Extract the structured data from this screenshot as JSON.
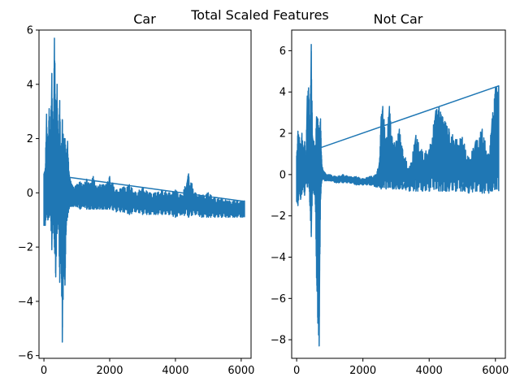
{
  "figure_title": "Total Scaled Features",
  "chart_data": [
    {
      "type": "line",
      "title": "Car",
      "xlabel": "",
      "ylabel": "",
      "xlim": [
        -150,
        6300
      ],
      "ylim": [
        -6.1,
        6.0
      ],
      "xticks": [
        0,
        2000,
        4000,
        6000
      ],
      "yticks": [
        -6,
        -4,
        -2,
        0,
        2,
        4,
        6
      ],
      "xtick_labels": [
        "0",
        "2000",
        "4000",
        "6000"
      ],
      "ytick_labels": [
        "−6",
        "−4",
        "−2",
        "0",
        "2",
        "4",
        "6"
      ],
      "grid": false,
      "color": "#1f77b4",
      "x": [
        0,
        40,
        80,
        120,
        160,
        200,
        240,
        280,
        320,
        360,
        400,
        440,
        480,
        520,
        560,
        600,
        640,
        680,
        720,
        760,
        800,
        850,
        900,
        1000,
        1100,
        1200,
        1300,
        1400,
        1500,
        1600,
        1700,
        1800,
        1900,
        2000,
        2200,
        2400,
        2600,
        2800,
        3000,
        3200,
        3400,
        3600,
        3800,
        4000,
        4200,
        4400,
        4600,
        4800,
        5000,
        5200,
        5400,
        5600,
        5800,
        6000,
        6100
      ],
      "y_max": [
        0.7,
        0.9,
        2.9,
        1.6,
        3.1,
        2.2,
        4.4,
        1.8,
        5.7,
        3.0,
        4.0,
        1.5,
        3.4,
        1.2,
        2.7,
        2.0,
        2.0,
        1.4,
        1.9,
        0.8,
        0.5,
        0.3,
        0.2,
        0.3,
        0.4,
        0.3,
        0.5,
        0.3,
        0.6,
        0.2,
        0.3,
        0.3,
        0.3,
        0.6,
        0.1,
        0.2,
        0.3,
        0.0,
        0.2,
        0.0,
        0.0,
        0.1,
        0.0,
        0.1,
        -0.1,
        0.7,
        0.0,
        -0.1,
        0.0,
        -0.2,
        -0.2,
        -0.3,
        -0.3,
        -0.3,
        -0.3
      ],
      "y_min": [
        -1.2,
        -1.2,
        -0.8,
        -1.0,
        -0.9,
        -0.8,
        -2.1,
        -1.0,
        -2.0,
        -3.1,
        -1.5,
        -0.9,
        -3.3,
        -2.2,
        -5.5,
        -2.8,
        -3.4,
        -1.2,
        -0.9,
        -0.6,
        -0.5,
        -0.5,
        -0.5,
        -0.5,
        -0.6,
        -0.5,
        -0.6,
        -0.6,
        -0.6,
        -0.6,
        -0.6,
        -0.6,
        -0.6,
        -0.6,
        -0.7,
        -0.7,
        -0.8,
        -0.7,
        -0.8,
        -0.8,
        -0.8,
        -0.8,
        -0.8,
        -0.9,
        -0.8,
        -0.9,
        -0.8,
        -0.9,
        -0.9,
        -0.9,
        -0.9,
        -0.9,
        -0.9,
        -0.9,
        -0.9
      ]
    },
    {
      "type": "line",
      "title": "Not Car",
      "xlabel": "",
      "ylabel": "",
      "xlim": [
        -150,
        6300
      ],
      "ylim": [
        -8.9,
        7.0
      ],
      "xticks": [
        0,
        2000,
        4000,
        6000
      ],
      "yticks": [
        -8,
        -6,
        -4,
        -2,
        0,
        2,
        4,
        6
      ],
      "xtick_labels": [
        "0",
        "2000",
        "4000",
        "6000"
      ],
      "ytick_labels": [
        "−8",
        "−6",
        "−4",
        "−2",
        "0",
        "2",
        "4",
        "6"
      ],
      "grid": false,
      "color": "#1f77b4",
      "x": [
        0,
        40,
        80,
        120,
        160,
        200,
        240,
        280,
        320,
        360,
        400,
        440,
        480,
        520,
        560,
        600,
        640,
        680,
        720,
        760,
        800,
        850,
        900,
        1000,
        1200,
        1400,
        1600,
        1800,
        2000,
        2200,
        2400,
        2500,
        2550,
        2600,
        2700,
        2800,
        2900,
        3000,
        3100,
        3200,
        3400,
        3600,
        3800,
        4000,
        4200,
        4300,
        4400,
        4500,
        4600,
        4800,
        5000,
        5200,
        5400,
        5600,
        5800,
        5900,
        6000,
        6100
      ],
      "y_max": [
        0.9,
        2.1,
        1.8,
        1.3,
        2.0,
        1.1,
        1.6,
        0.6,
        3.8,
        4.2,
        2.2,
        6.3,
        1.8,
        1.6,
        1.2,
        2.8,
        2.7,
        2.2,
        2.7,
        0.5,
        0.2,
        0.1,
        0.0,
        0.0,
        -0.1,
        0.0,
        -0.1,
        -0.1,
        -0.2,
        -0.1,
        0.0,
        0.6,
        2.8,
        3.3,
        1.7,
        3.3,
        1.5,
        1.6,
        2.2,
        1.2,
        0.3,
        1.9,
        1.1,
        1.2,
        3.1,
        3.3,
        2.8,
        2.5,
        2.2,
        1.7,
        1.8,
        0.8,
        1.6,
        2.2,
        0.9,
        2.7,
        4.2,
        4.3
      ],
      "y_min": [
        -1.3,
        -1.5,
        -0.8,
        -1.2,
        -0.9,
        -0.6,
        -1.0,
        -0.3,
        -0.6,
        -0.4,
        -1.5,
        -3.0,
        -0.7,
        -0.9,
        -1.1,
        -5.0,
        -7.2,
        -8.3,
        -1.2,
        -0.3,
        -0.2,
        -0.3,
        -0.3,
        -0.3,
        -0.4,
        -0.4,
        -0.4,
        -0.5,
        -0.5,
        -0.5,
        -0.6,
        -0.6,
        -0.7,
        -0.6,
        -0.7,
        -0.6,
        -0.7,
        -0.7,
        -0.7,
        -0.7,
        -0.8,
        -0.8,
        -0.8,
        -0.8,
        -0.7,
        -0.8,
        -0.8,
        -0.8,
        -0.8,
        -0.8,
        -0.8,
        -0.9,
        -0.8,
        -0.9,
        -0.9,
        -0.8,
        -0.7,
        -0.8
      ]
    }
  ]
}
